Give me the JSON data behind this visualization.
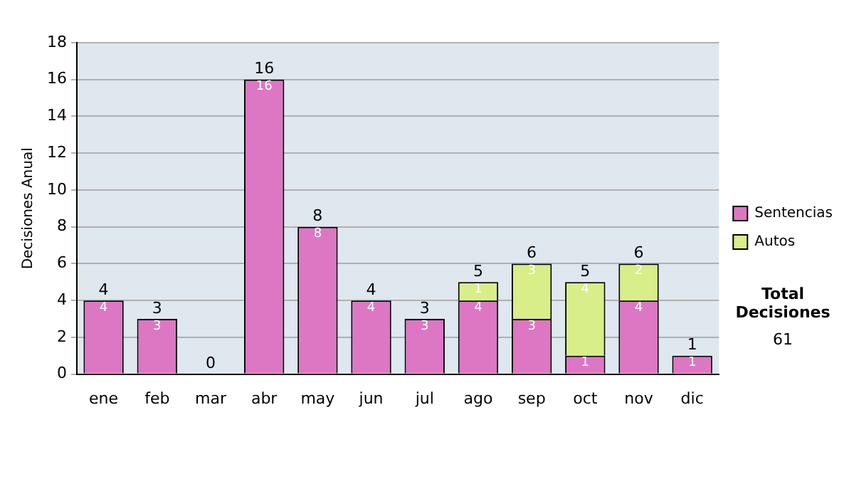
{
  "chart_data": {
    "type": "bar",
    "stacked": true,
    "ylabel": "Decisiones Anual",
    "categories": [
      "ene",
      "feb",
      "mar",
      "abr",
      "may",
      "jun",
      "jul",
      "ago",
      "sep",
      "oct",
      "nov",
      "dic"
    ],
    "series": [
      {
        "name": "Sentencias",
        "color": "#dd77c4",
        "values": [
          4,
          3,
          0,
          16,
          8,
          4,
          3,
          4,
          3,
          1,
          4,
          1
        ],
        "value_labels": [
          "4",
          "3",
          null,
          "16",
          "8",
          "4",
          "3",
          "4",
          "3",
          "1",
          "4",
          "1"
        ]
      },
      {
        "name": "Autos",
        "color": "#d8ee88",
        "values": [
          0,
          0,
          0,
          0,
          0,
          0,
          0,
          1,
          3,
          4,
          2,
          0
        ],
        "value_labels": [
          null,
          null,
          null,
          null,
          null,
          null,
          null,
          "1",
          "3",
          "4",
          "2",
          null
        ]
      }
    ],
    "totals": [
      "4",
      "3",
      "0",
      "16",
      "8",
      "4",
      "3",
      "5",
      "6",
      "5",
      "6",
      "1"
    ],
    "ylim": [
      0,
      18
    ],
    "yticks": [
      0,
      2,
      4,
      6,
      8,
      10,
      12,
      14,
      16,
      18
    ],
    "grid": "y",
    "legend": "right",
    "annotations": [
      "Total Decisiones",
      "61"
    ]
  }
}
